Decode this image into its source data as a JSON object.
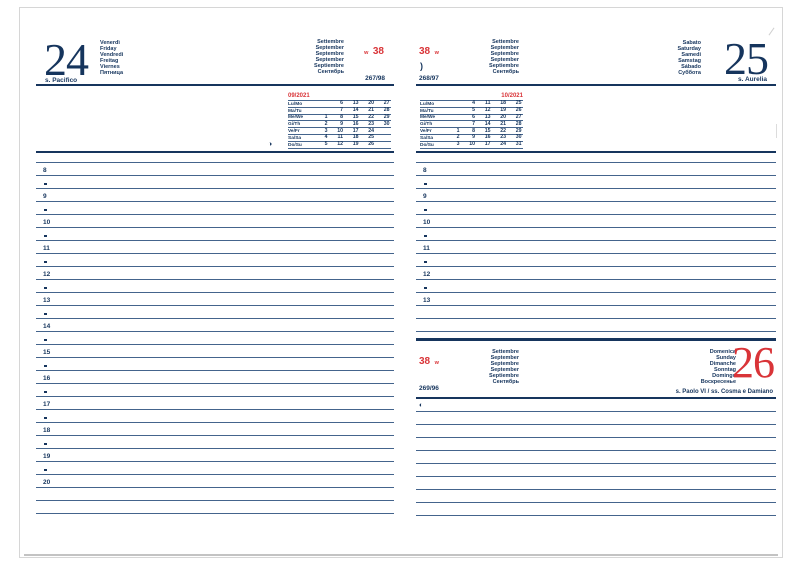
{
  "colors": {
    "navy": "#16355d",
    "red": "#d93438",
    "line_blue": "#44648c"
  },
  "left_page": {
    "day_number": "24",
    "day_names": [
      "Venerdì",
      "Friday",
      "Vendredi",
      "Freitag",
      "Viernes",
      "Пятница"
    ],
    "saint": "s. Pacifico",
    "months": [
      "Settembre",
      "September",
      "Septembre",
      "September",
      "Septiembre",
      "Сентябрь"
    ],
    "week_prefix": "w",
    "week_number": "38",
    "day_of_year": "267/98",
    "moon_symbol": "◑",
    "calendar": {
      "title": "09/2021",
      "rows": [
        {
          "label": "Lu/Mo",
          "dates": [
            "",
            "6",
            "13",
            "20",
            "27"
          ]
        },
        {
          "label": "Ma/Tu",
          "dates": [
            "",
            "7",
            "14",
            "21",
            "28"
          ]
        },
        {
          "label": "Me/We",
          "dates": [
            "1",
            "8",
            "15",
            "22",
            "29"
          ]
        },
        {
          "label": "Gi/Th",
          "dates": [
            "2",
            "9",
            "16",
            "23",
            "30"
          ]
        },
        {
          "label": "Ve/Fr",
          "dates": [
            "3",
            "10",
            "17",
            "24",
            ""
          ]
        },
        {
          "label": "Sa/Sa",
          "dates": [
            "4",
            "11",
            "18",
            "25",
            ""
          ]
        },
        {
          "label": "Do/Su",
          "dates": [
            "5",
            "12",
            "19",
            "26",
            ""
          ]
        }
      ]
    },
    "schedule": [
      "",
      "8",
      "•",
      "9",
      "•",
      "10",
      "•",
      "11",
      "•",
      "12",
      "•",
      "13",
      "•",
      "14",
      "•",
      "15",
      "•",
      "16",
      "•",
      "17",
      "•",
      "18",
      "•",
      "19",
      "•",
      "20",
      "",
      ""
    ]
  },
  "right_page": {
    "day_number": "25",
    "day_names": [
      "Sabato",
      "Saturday",
      "Samedi",
      "Samstag",
      "Sábado",
      "Суббота"
    ],
    "saint": "s. Aurelia",
    "months": [
      "Settembre",
      "September",
      "Septembre",
      "September",
      "Septiembre",
      "Сентябрь"
    ],
    "week_number": "38",
    "week_suffix": "w",
    "day_of_year": "268/97",
    "moon_symbol": ")",
    "calendar": {
      "title": "10/2021",
      "rows": [
        {
          "label": "Lu/Mo",
          "dates": [
            "",
            "4",
            "11",
            "18",
            "25"
          ]
        },
        {
          "label": "Ma/Tu",
          "dates": [
            "",
            "5",
            "12",
            "19",
            "26"
          ]
        },
        {
          "label": "Me/We",
          "dates": [
            "",
            "6",
            "13",
            "20",
            "27"
          ]
        },
        {
          "label": "Gi/Th",
          "dates": [
            "",
            "7",
            "14",
            "21",
            "28"
          ]
        },
        {
          "label": "Ve/Fr",
          "dates": [
            "1",
            "8",
            "15",
            "22",
            "29"
          ]
        },
        {
          "label": "Sa/Sa",
          "dates": [
            "2",
            "9",
            "16",
            "23",
            "30"
          ]
        },
        {
          "label": "Do/Su",
          "dates": [
            "3",
            "10",
            "17",
            "24",
            "31"
          ]
        }
      ]
    },
    "schedule": [
      "",
      "8",
      "•",
      "9",
      "•",
      "10",
      "•",
      "11",
      "•",
      "12",
      "•",
      "13",
      "",
      ""
    ]
  },
  "sunday_section": {
    "day_number": "26",
    "day_names": [
      "Domenica",
      "Sunday",
      "Dimanche",
      "Sonntag",
      "Domingo",
      "Воскресенье"
    ],
    "saint": "s. Paolo VI / ss. Cosma e Damiano",
    "months": [
      "Settembre",
      "September",
      "Septembre",
      "September",
      "Septiembre",
      "Сентябрь"
    ],
    "week_number": "38",
    "week_suffix": "w",
    "day_of_year": "269/96",
    "moon_symbol": "◐",
    "blank_lines": 9
  }
}
